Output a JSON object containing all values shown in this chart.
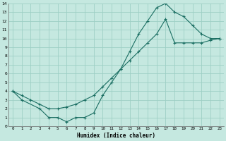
{
  "bg_color": "#c5e8e0",
  "grid_color": "#9ecfc5",
  "line_color": "#1a6e62",
  "marker": "+",
  "xlabel": "Humidex (Indice chaleur)",
  "xlim": [
    -0.5,
    23.5
  ],
  "ylim": [
    0,
    14
  ],
  "xticks": [
    0,
    1,
    2,
    3,
    4,
    5,
    6,
    7,
    8,
    9,
    10,
    11,
    12,
    13,
    14,
    15,
    16,
    17,
    18,
    19,
    20,
    21,
    22,
    23
  ],
  "yticks": [
    0,
    1,
    2,
    3,
    4,
    5,
    6,
    7,
    8,
    9,
    10,
    11,
    12,
    13,
    14
  ],
  "curve1_x": [
    0,
    1,
    3,
    4,
    5,
    6,
    7,
    8,
    9,
    10,
    11,
    12,
    13,
    14,
    15,
    16,
    17,
    18,
    19,
    20,
    21,
    22,
    23
  ],
  "curve1_y": [
    4.0,
    3.0,
    2.0,
    1.0,
    1.0,
    0.5,
    1.0,
    1.0,
    1.5,
    3.5,
    5.0,
    6.5,
    8.5,
    10.5,
    12.0,
    13.5,
    14.0,
    13.0,
    12.5,
    11.5,
    10.5,
    10.0,
    10.0
  ],
  "curve2_x": [
    0,
    1,
    2,
    3,
    4,
    5,
    6,
    7,
    8,
    9,
    10,
    11,
    12,
    13,
    14,
    15,
    16,
    17,
    18,
    19,
    20,
    21,
    22,
    23
  ],
  "curve2_y": [
    4.0,
    3.5,
    3.0,
    2.5,
    2.0,
    2.0,
    2.2,
    2.5,
    3.0,
    3.5,
    4.5,
    5.5,
    6.5,
    7.5,
    8.5,
    9.5,
    10.5,
    12.2,
    9.5,
    9.5,
    9.5,
    9.5,
    9.8,
    10.0
  ]
}
